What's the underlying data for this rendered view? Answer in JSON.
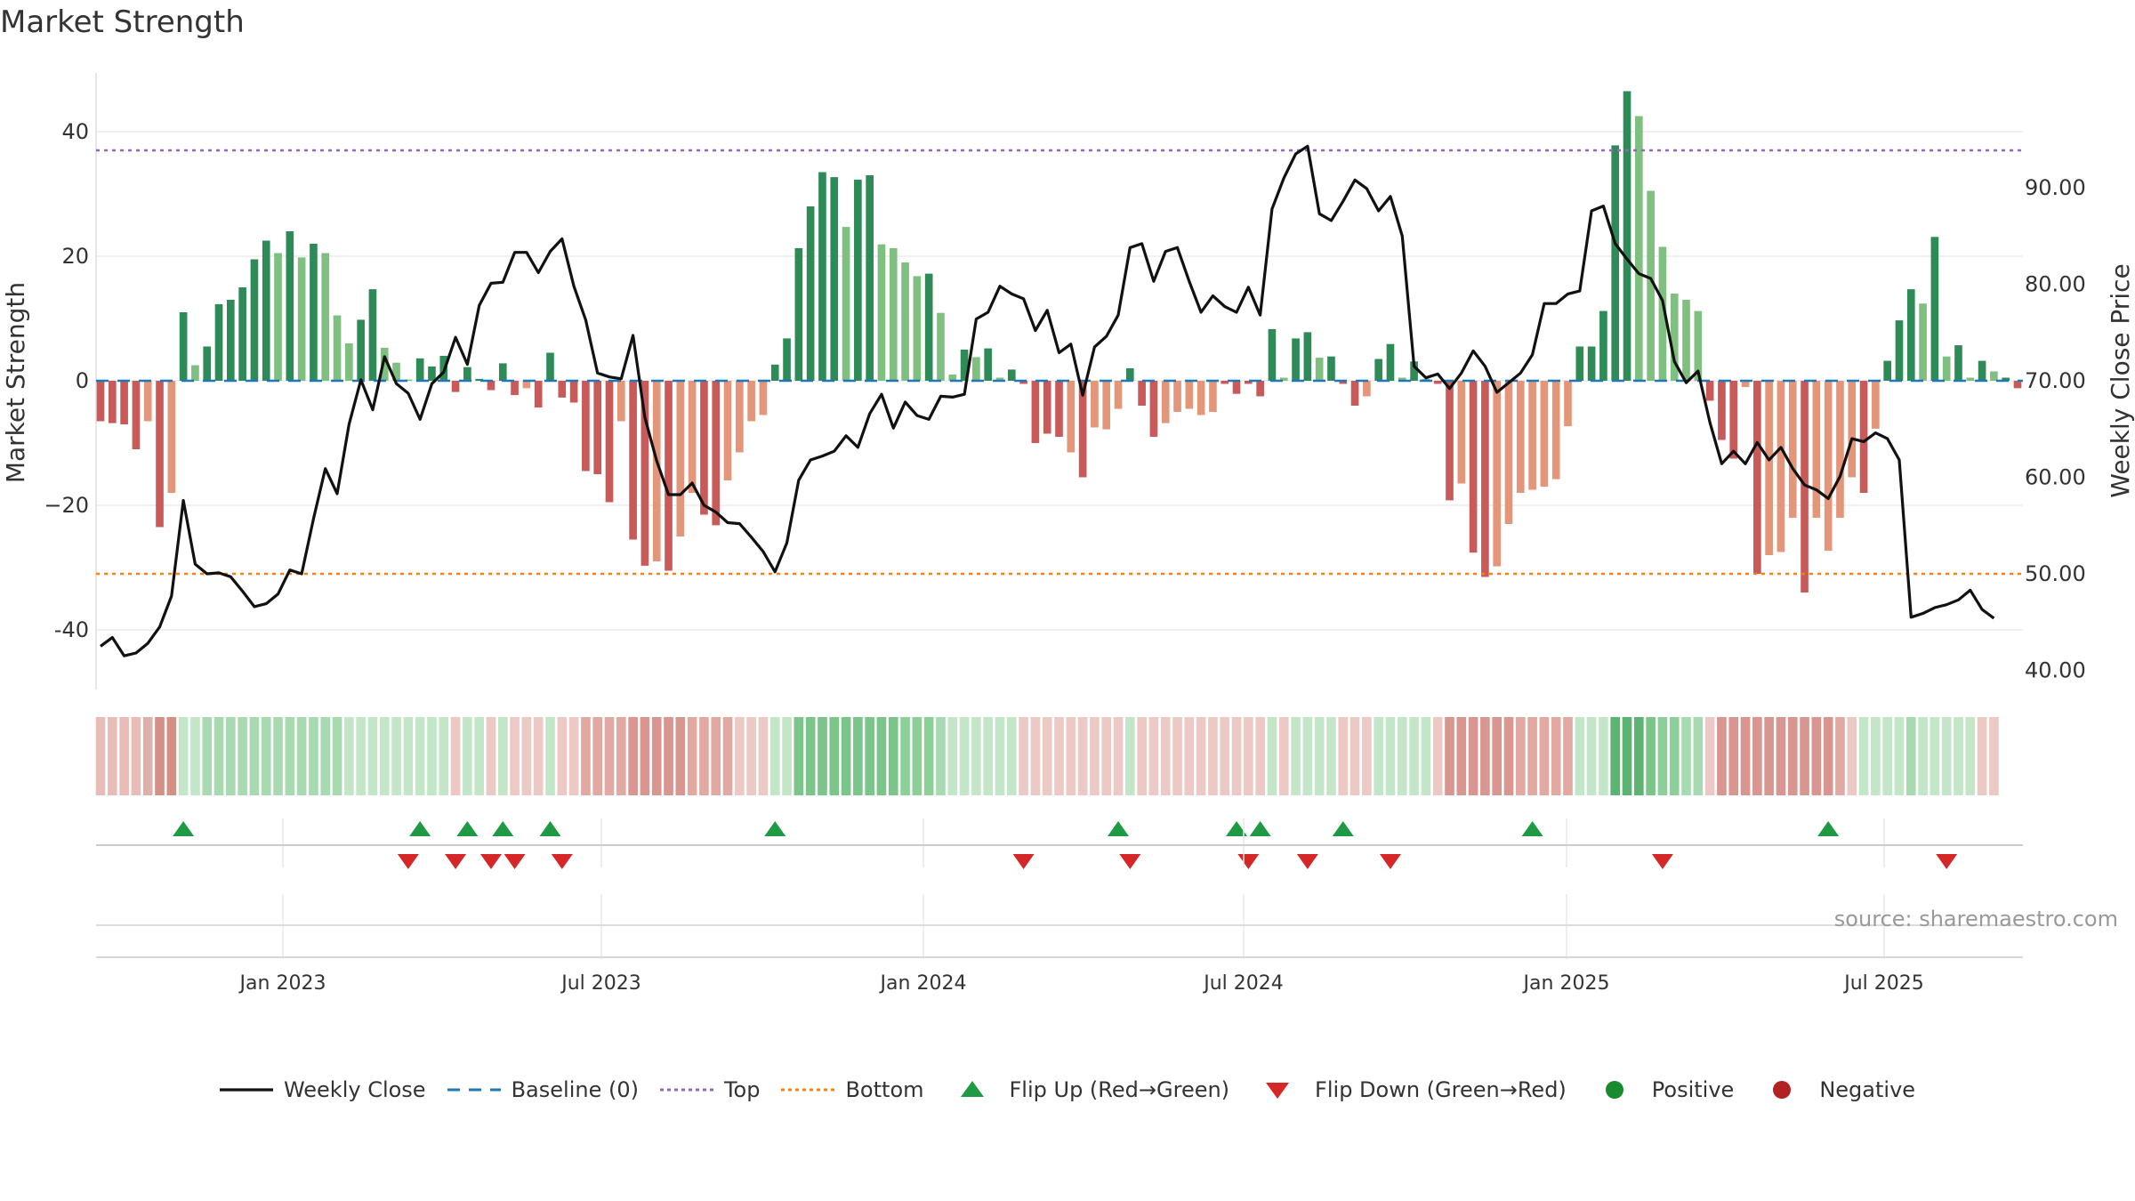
{
  "chart_data": {
    "title": "Market Strength",
    "type": "bar",
    "ylabel_left": "Market Strength",
    "ylabel_right": "Weekly Close Price",
    "left_ticks": [
      40,
      20,
      0,
      -20,
      -40
    ],
    "left_tick_labels": [
      "40",
      "20",
      "0",
      "−20",
      "-40"
    ],
    "right_ticks": [
      "90.00",
      "80.00",
      "70.00",
      "60.00",
      "50.00",
      "40.00"
    ],
    "top_level": 37,
    "bottom_level": -31,
    "x_ticks": [
      "Jan 2023",
      "Jul 2023",
      "Jan 2024",
      "Jul 2024",
      "Jan 2025",
      "Jul 2025"
    ],
    "source": "source: sharemaestro.com",
    "strength_values": [
      -6.5,
      -6.8,
      -7,
      -11,
      -6.5,
      -23.5,
      -18,
      11,
      2.5,
      5.5,
      12.3,
      13,
      15,
      19.5,
      22.5,
      20.5,
      24,
      19.8,
      22,
      20.5,
      10.5,
      6,
      9.8,
      14.7,
      5.3,
      2.9,
      0.2,
      3.6,
      2.3,
      4,
      -1.8,
      2.2,
      0.3,
      -1.5,
      2.8,
      -2.3,
      -1.2,
      -4.3,
      4.5,
      -2.7,
      -3.5,
      -14.5,
      -15,
      -19.5,
      -6.5,
      -25.5,
      -29.7,
      -29,
      -30.5,
      -25,
      -18,
      -21.5,
      -23.2,
      -16,
      -11.5,
      -6.5,
      -5.5,
      2.6,
      6.8,
      21.3,
      28,
      33.5,
      32.7,
      24.7,
      32.3,
      33,
      21.9,
      21.3,
      19,
      16.8,
      17.2,
      10.9,
      1,
      5,
      3.8,
      5.2,
      0.5,
      1.8,
      -0.5,
      -10,
      -8.5,
      -9,
      -11.5,
      -15.5,
      -7.5,
      -7.8,
      -4.5,
      2,
      -4,
      -9,
      -6.8,
      -5,
      -4.5,
      -5.5,
      -5,
      -0.5,
      -2.1,
      -0.5,
      -2.5,
      8.3,
      0.5,
      6.8,
      7.8,
      3.7,
      3.9,
      -0.5,
      -4,
      -2.5,
      3.5,
      5.9,
      0.5,
      3.1,
      0.3,
      -0.5,
      -19.2,
      -16.5,
      -27.6,
      -31.5,
      -29.8,
      -23,
      -18,
      -17.5,
      -17,
      -15.8,
      -7.3,
      5.5,
      5.5,
      11.2,
      37.8,
      46.5,
      42.5,
      30.5,
      21.5,
      14,
      13,
      11.2,
      -3.2,
      -9.5,
      -12.5,
      -1,
      -31,
      -28,
      -27.5,
      -22,
      -34,
      -22,
      -27.3,
      -22,
      -15.5,
      -18,
      -7.7,
      3.2,
      9.7,
      14.7,
      12.4,
      23.1,
      3.9,
      5.7,
      0.5,
      3.2,
      1.5,
      0.5,
      -1.2
    ],
    "bar_colors": [
      "#c85a5a",
      "#c85a5a",
      "#c85a5a",
      "#c85a5a",
      "#e3967a",
      "#c85a5a",
      "#e3967a",
      "#2e8b57",
      "#7fbf7f",
      "#2e8b57",
      "#2e8b57",
      "#2e8b57",
      "#2e8b57",
      "#2e8b57",
      "#2e8b57",
      "#7fbf7f",
      "#2e8b57",
      "#7fbf7f",
      "#2e8b57",
      "#7fbf7f",
      "#7fbf7f",
      "#7fbf7f",
      "#2e8b57",
      "#2e8b57",
      "#7fbf7f",
      "#7fbf7f",
      "#7fbf7f",
      "#2e8b57",
      "#2e8b57",
      "#2e8b57",
      "#c85a5a",
      "#2e8b57",
      "#2e8b57",
      "#c85a5a",
      "#2e8b57",
      "#c85a5a",
      "#e3967a",
      "#c85a5a",
      "#2e8b57",
      "#c85a5a",
      "#c85a5a",
      "#c85a5a",
      "#c85a5a",
      "#c85a5a",
      "#e3967a",
      "#c85a5a",
      "#c85a5a",
      "#e3967a",
      "#c85a5a",
      "#e3967a",
      "#e3967a",
      "#c85a5a",
      "#c85a5a",
      "#e3967a",
      "#e3967a",
      "#e3967a",
      "#e3967a",
      "#2e8b57",
      "#2e8b57",
      "#2e8b57",
      "#2e8b57",
      "#2e8b57",
      "#2e8b57",
      "#7fbf7f",
      "#2e8b57",
      "#2e8b57",
      "#7fbf7f",
      "#7fbf7f",
      "#7fbf7f",
      "#7fbf7f",
      "#2e8b57",
      "#7fbf7f",
      "#7fbf7f",
      "#2e8b57",
      "#7fbf7f",
      "#2e8b57",
      "#7fbf7f",
      "#2e8b57",
      "#c85a5a",
      "#c85a5a",
      "#c85a5a",
      "#c85a5a",
      "#e3967a",
      "#c85a5a",
      "#e3967a",
      "#e3967a",
      "#e3967a",
      "#2e8b57",
      "#c85a5a",
      "#c85a5a",
      "#e3967a",
      "#e3967a",
      "#e3967a",
      "#e3967a",
      "#e3967a",
      "#c85a5a",
      "#c85a5a",
      "#c85a5a",
      "#c85a5a",
      "#2e8b57",
      "#7fbf7f",
      "#2e8b57",
      "#2e8b57",
      "#7fbf7f",
      "#2e8b57",
      "#c85a5a",
      "#c85a5a",
      "#e3967a",
      "#2e8b57",
      "#2e8b57",
      "#7fbf7f",
      "#2e8b57",
      "#7fbf7f",
      "#c85a5a",
      "#c85a5a",
      "#e3967a",
      "#c85a5a",
      "#c85a5a",
      "#e3967a",
      "#e3967a",
      "#e3967a",
      "#e3967a",
      "#e3967a",
      "#e3967a",
      "#e3967a",
      "#2e8b57",
      "#2e8b57",
      "#2e8b57",
      "#2e8b57",
      "#2e8b57",
      "#7fbf7f",
      "#7fbf7f",
      "#7fbf7f",
      "#7fbf7f",
      "#7fbf7f",
      "#7fbf7f",
      "#c85a5a",
      "#c85a5a",
      "#c85a5a",
      "#e3967a",
      "#c85a5a",
      "#e3967a",
      "#e3967a",
      "#e3967a",
      "#c85a5a",
      "#e3967a",
      "#e3967a",
      "#e3967a",
      "#e3967a",
      "#c85a5a",
      "#e3967a",
      "#2e8b57",
      "#2e8b57",
      "#2e8b57",
      "#7fbf7f",
      "#2e8b57",
      "#7fbf7f",
      "#2e8b57",
      "#7fbf7f",
      "#2e8b57",
      "#7fbf7f",
      "#2e8b57",
      "#c85a5a"
    ],
    "close_values": [
      42.5,
      43.4,
      41.5,
      41.8,
      42.8,
      44.5,
      47.7,
      57.6,
      51,
      50,
      50.1,
      49.7,
      48.2,
      46.6,
      46.9,
      47.9,
      50.4,
      50,
      55.7,
      60.9,
      58.3,
      65.5,
      70.1,
      67,
      72.5,
      69.7,
      68.7,
      66,
      69.7,
      70.9,
      74.5,
      71.7,
      77.8,
      80.1,
      80.2,
      83.3,
      83.3,
      81.2,
      83.4,
      84.7,
      79.8,
      76.3,
      70.8,
      70.4,
      70.2,
      74.7,
      66.2,
      61.7,
      58.2,
      58.2,
      59.4,
      57.1,
      56.4,
      55.3,
      55.2,
      53.8,
      52.3,
      50.2,
      53.2,
      59.7,
      61.8,
      62.2,
      62.7,
      64.3,
      63.1,
      66.6,
      68.6,
      65.1,
      67.8,
      66.4,
      66,
      68.4,
      68.3,
      68.6,
      76.4,
      77.1,
      79.8,
      79,
      78.5,
      75.2,
      77.3,
      72.9,
      73.8,
      68.5,
      73.5,
      74.6,
      76.8,
      83.8,
      84.2,
      80.3,
      83.4,
      83.8,
      80.3,
      77.1,
      78.8,
      77.7,
      77.1,
      79.7,
      76.8,
      87.8,
      91,
      93.5,
      94.3,
      87.3,
      86.6,
      88.6,
      90.8,
      89.9,
      87.6,
      89.1,
      85,
      71.5,
      70.3,
      70.7,
      69.2,
      70.8,
      73.1,
      71.5,
      68.8,
      69.8,
      70.8,
      72.7,
      78,
      78,
      79,
      79.3,
      87.6,
      88.1,
      84.2,
      82.6,
      81.1,
      80.6,
      78.3,
      72,
      69.8,
      71,
      65.7,
      61.4,
      62.7,
      61.4,
      63.6,
      61.8,
      63.1,
      60.9,
      59.2,
      58.7,
      57.8,
      60.1,
      64,
      63.7,
      64.6,
      64,
      61.8,
      45.5,
      45.9,
      46.5,
      46.8,
      47.3,
      48.3,
      46.3,
      45.4
    ],
    "strip_colors": [
      "#e8bcb7",
      "#e8bcb7",
      "#e8bcb7",
      "#e8bcb7",
      "#ddb1ab",
      "#d48f86",
      "#d48f86",
      "#c4e6c8",
      "#c4e6c8",
      "#a8dab1",
      "#a8dab1",
      "#a8dab1",
      "#a8dab1",
      "#a8dab1",
      "#a8dab1",
      "#a8dab1",
      "#a8dab1",
      "#a8dab1",
      "#a8dab1",
      "#a8dab1",
      "#a8dab1",
      "#c4e6c8",
      "#c4e6c8",
      "#c4e6c8",
      "#c4e6c8",
      "#c4e6c8",
      "#c4e6c8",
      "#c4e6c8",
      "#c4e6c8",
      "#c4e6c8",
      "#ecc9c5",
      "#c4e6c8",
      "#c4e6c8",
      "#ecc9c5",
      "#c4e6c8",
      "#ecc9c5",
      "#ecc9c5",
      "#ecc9c5",
      "#c4e6c8",
      "#ecc9c5",
      "#ecc9c5",
      "#e2a9a3",
      "#e2a9a3",
      "#e2a9a3",
      "#e2a9a3",
      "#d99690",
      "#d99690",
      "#d99690",
      "#d99690",
      "#d99690",
      "#e2a9a3",
      "#e2a9a3",
      "#e2a9a3",
      "#e2a9a3",
      "#ecc9c5",
      "#ecc9c5",
      "#ecc9c5",
      "#c4e6c8",
      "#c4e6c8",
      "#7bc58a",
      "#7bc58a",
      "#7bc58a",
      "#7bc58a",
      "#7bc58a",
      "#7bc58a",
      "#7bc58a",
      "#7bc58a",
      "#7bc58a",
      "#8ccf99",
      "#8ccf99",
      "#8ccf99",
      "#a8dab1",
      "#c4e6c8",
      "#c4e6c8",
      "#c4e6c8",
      "#c4e6c8",
      "#c4e6c8",
      "#c4e6c8",
      "#ecc9c5",
      "#ecc9c5",
      "#ecc9c5",
      "#ecc9c5",
      "#ecc9c5",
      "#ecc9c5",
      "#ecc9c5",
      "#ecc9c5",
      "#ecc9c5",
      "#c4e6c8",
      "#ecc9c5",
      "#ecc9c5",
      "#ecc9c5",
      "#ecc9c5",
      "#ecc9c5",
      "#ecc9c5",
      "#ecc9c5",
      "#ecc9c5",
      "#ecc9c5",
      "#ecc9c5",
      "#ecc9c5",
      "#c4e6c8",
      "#ecc9c5",
      "#c4e6c8",
      "#c4e6c8",
      "#c4e6c8",
      "#c4e6c8",
      "#ecc9c5",
      "#ecc9c5",
      "#ecc9c5",
      "#c4e6c8",
      "#c4e6c8",
      "#c4e6c8",
      "#c4e6c8",
      "#c4e6c8",
      "#ecc9c5",
      "#d99690",
      "#d99690",
      "#d99690",
      "#d99690",
      "#d99690",
      "#d99690",
      "#e2a9a3",
      "#e2a9a3",
      "#e2a9a3",
      "#e2a9a3",
      "#e2a9a3",
      "#c4e6c8",
      "#c4e6c8",
      "#c4e6c8",
      "#5db371",
      "#5db371",
      "#5db371",
      "#7bc58a",
      "#8ccf99",
      "#8ccf99",
      "#a8dab1",
      "#a8dab1",
      "#ecc9c5",
      "#d99690",
      "#d99690",
      "#d99690",
      "#d99690",
      "#d99690",
      "#d99690",
      "#d99690",
      "#d99690",
      "#d99690",
      "#d99690",
      "#e2a9a3",
      "#ecc9c5",
      "#c4e6c8",
      "#c4e6c8",
      "#c4e6c8",
      "#c4e6c8",
      "#a8dab1",
      "#c4e6c8",
      "#c4e6c8",
      "#c4e6c8",
      "#c4e6c8",
      "#c4e6c8",
      "#ecc9c5",
      "#ecc9c5"
    ],
    "flip_up_weeks": [
      7,
      27,
      31,
      34,
      38,
      57,
      86,
      96,
      98,
      105,
      121,
      146
    ],
    "flip_down_weeks": [
      26,
      30,
      33,
      35,
      39,
      78,
      87,
      97,
      102,
      109,
      132,
      156
    ],
    "colors": {
      "line": "#111111",
      "baseline": "#1f77b4",
      "top": "#9467bd",
      "bottom": "#ff7f0e",
      "flip_up": "#1e9a45",
      "flip_down": "#d62728",
      "positive": "#1a8a2e",
      "negative": "#b22222"
    }
  },
  "legend": {
    "weekly_close": "Weekly Close",
    "baseline": "Baseline (0)",
    "top": "Top",
    "bottom": "Bottom",
    "flip_up": "Flip Up (Red→Green)",
    "flip_down": "Flip Down (Green→Red)",
    "positive": "Positive",
    "negative": "Negative"
  }
}
